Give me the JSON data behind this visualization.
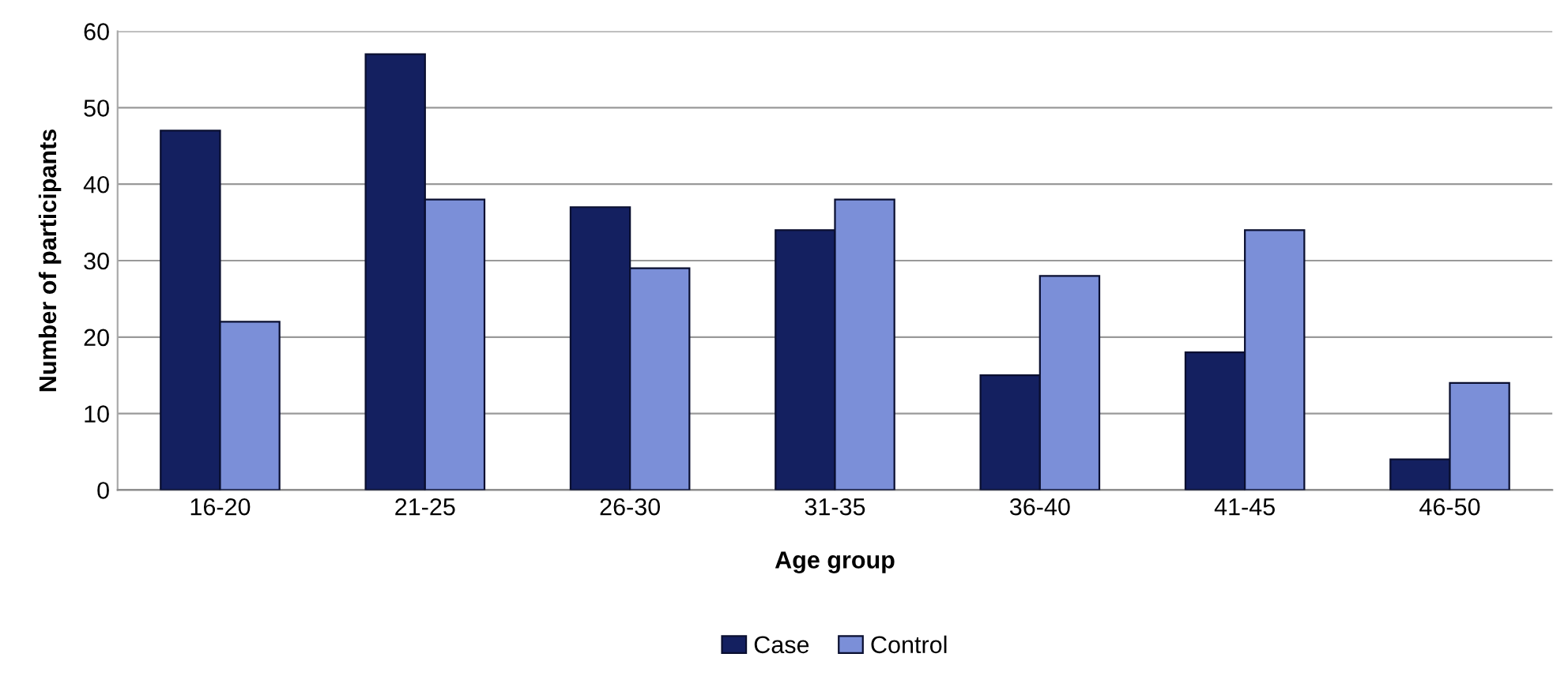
{
  "chart_data": {
    "type": "bar",
    "xlabel": "Age group",
    "ylabel": "Number of participants",
    "categories": [
      "16-20",
      "21-25",
      "26-30",
      "31-35",
      "36-40",
      "41-45",
      "46-50"
    ],
    "series": [
      {
        "name": "Case",
        "color": "#142060",
        "values": [
          47,
          57,
          37,
          34,
          15,
          18,
          4
        ]
      },
      {
        "name": "Control",
        "color": "#7b8fd8",
        "values": [
          22,
          38,
          29,
          38,
          28,
          34,
          14
        ]
      }
    ],
    "ylim": [
      0,
      60
    ],
    "yticks": [
      0,
      10,
      20,
      30,
      40,
      50,
      60
    ],
    "grid": "y",
    "legend": "bottom"
  }
}
